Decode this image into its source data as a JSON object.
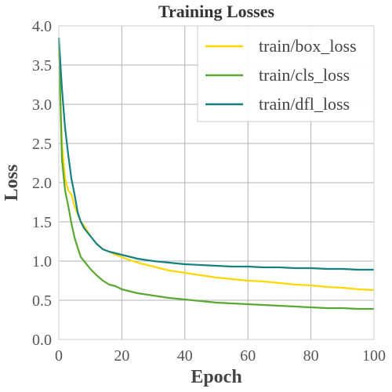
{
  "chart_data": {
    "type": "line",
    "title": "Training Losses",
    "xlabel": "Epoch",
    "ylabel": "Loss",
    "xlim": [
      0,
      100
    ],
    "ylim": [
      0,
      4
    ],
    "xticks": [
      0,
      20,
      40,
      60,
      80,
      100
    ],
    "yticks": [
      0.0,
      0.5,
      1.0,
      1.5,
      2.0,
      2.5,
      3.0,
      3.5,
      4.0
    ],
    "grid": true,
    "legend": "top-right",
    "x": [
      0,
      1,
      2,
      3,
      4,
      5,
      6,
      7,
      8,
      10,
      12,
      14,
      16,
      18,
      20,
      22,
      25,
      30,
      35,
      40,
      45,
      50,
      55,
      60,
      65,
      70,
      75,
      80,
      85,
      90,
      95,
      100
    ],
    "series": [
      {
        "name": "train/box_loss",
        "color": "#ffd700",
        "values": [
          3.7,
          2.5,
          2.05,
          1.9,
          1.85,
          1.7,
          1.6,
          1.5,
          1.45,
          1.32,
          1.22,
          1.15,
          1.12,
          1.08,
          1.05,
          1.02,
          0.98,
          0.93,
          0.88,
          0.85,
          0.82,
          0.79,
          0.77,
          0.75,
          0.74,
          0.72,
          0.7,
          0.69,
          0.67,
          0.66,
          0.64,
          0.63
        ]
      },
      {
        "name": "train/cls_loss",
        "color": "#5aa832",
        "values": [
          3.8,
          2.3,
          1.9,
          1.7,
          1.48,
          1.3,
          1.17,
          1.05,
          1.0,
          0.9,
          0.82,
          0.75,
          0.7,
          0.68,
          0.64,
          0.62,
          0.59,
          0.56,
          0.53,
          0.51,
          0.49,
          0.47,
          0.46,
          0.45,
          0.44,
          0.43,
          0.42,
          0.41,
          0.4,
          0.4,
          0.39,
          0.39
        ]
      },
      {
        "name": "train/dfl_loss",
        "color": "#168080",
        "values": [
          3.85,
          3.2,
          2.7,
          2.35,
          2.05,
          1.85,
          1.62,
          1.5,
          1.42,
          1.32,
          1.22,
          1.15,
          1.12,
          1.1,
          1.08,
          1.06,
          1.03,
          1.0,
          0.98,
          0.96,
          0.95,
          0.94,
          0.93,
          0.93,
          0.92,
          0.92,
          0.91,
          0.91,
          0.9,
          0.9,
          0.89,
          0.89
        ]
      }
    ]
  }
}
